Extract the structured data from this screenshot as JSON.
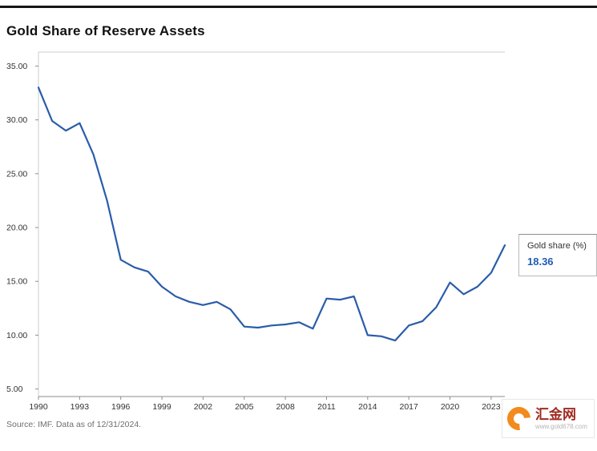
{
  "header": {
    "title": "Gold Share of Reserve Assets"
  },
  "legend": {
    "label": "Gold share (%)",
    "value": "18.36"
  },
  "footer": {
    "source": "Source: IMF. Data as of 12/31/2024."
  },
  "logo": {
    "name": "汇金网",
    "url": "www.gold678.com"
  },
  "colors": {
    "line": "#2a5caa",
    "value_blue": "#1f5bb5",
    "top_rule": "#161616",
    "axis": "#8d8d8d",
    "grid_light": "#cccccc",
    "logo_orange": "#f28a1e",
    "logo_text_red": "#9e2b22"
  },
  "chart_data": {
    "type": "line",
    "title": "Gold Share of Reserve Assets",
    "series_name": "Gold share (%)",
    "x": [
      1990,
      1991,
      1992,
      1993,
      1994,
      1995,
      1996,
      1997,
      1998,
      1999,
      2000,
      2001,
      2002,
      2003,
      2004,
      2005,
      2006,
      2007,
      2008,
      2009,
      2010,
      2011,
      2012,
      2013,
      2014,
      2015,
      2016,
      2017,
      2018,
      2019,
      2020,
      2021,
      2022,
      2023,
      2024
    ],
    "values": [
      33.0,
      29.9,
      29.0,
      29.7,
      26.8,
      22.5,
      17.0,
      16.3,
      15.9,
      14.5,
      13.6,
      13.1,
      12.8,
      13.1,
      12.4,
      10.8,
      10.7,
      10.9,
      11.0,
      11.2,
      10.6,
      13.4,
      13.3,
      13.6,
      10.0,
      9.9,
      9.5,
      10.9,
      11.3,
      12.6,
      14.9,
      13.8,
      14.5,
      15.8,
      18.36
    ],
    "last_value": 18.36,
    "ylim": [
      4.3,
      36.3
    ],
    "yticks": [
      5,
      10,
      15,
      20,
      25,
      30,
      35
    ],
    "ytick_labels": [
      "5.00",
      "10.00",
      "15.00",
      "20.00",
      "25.00",
      "30.00",
      "35.00"
    ],
    "xticks": [
      1990,
      1993,
      1996,
      1999,
      2002,
      2005,
      2008,
      2011,
      2014,
      2017,
      2020,
      2023
    ],
    "xlabel": "",
    "ylabel": "",
    "grid": false,
    "legend_position": "right"
  }
}
